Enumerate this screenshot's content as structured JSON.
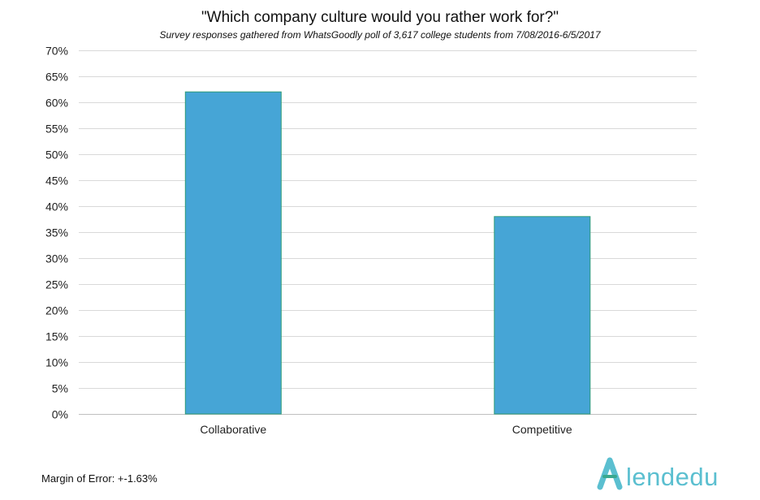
{
  "chart_data": {
    "type": "bar",
    "title": "\"Which company culture would you rather work for?\"",
    "subtitle": "Survey responses gathered from WhatsGoodly poll of 3,617 college students from 7/08/2016-6/5/2017",
    "categories": [
      "Collaborative",
      "Competitive"
    ],
    "values": [
      62,
      38
    ],
    "ylim": [
      0,
      70
    ],
    "y_tick_step": 5,
    "y_tick_suffix": "%",
    "y_tick_labels": [
      "0%",
      "5%",
      "10%",
      "15%",
      "20%",
      "25%",
      "30%",
      "35%",
      "40%",
      "45%",
      "50%",
      "55%",
      "60%",
      "65%",
      "70%"
    ],
    "grid": true,
    "bar_color": "#46a5d6",
    "bar_edge_color": "#2f9c78",
    "xlabel": "",
    "ylabel": ""
  },
  "footer": {
    "margin_of_error": "Margin of Error: +-1.63%"
  },
  "logo": {
    "text": "lendedu",
    "icon": "lendedu-a-icon",
    "color": "#5bbfd0"
  }
}
